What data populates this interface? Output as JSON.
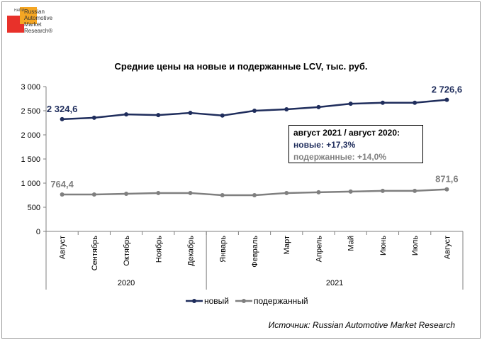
{
  "logo": {
    "tag": "НАПИ",
    "text": "Russian\nAutomotive\nMarket\nResearch®"
  },
  "chart_data": {
    "type": "line",
    "title": "Средние цены на новые и подержанные LCV, тыс. руб.",
    "categories": [
      "Август",
      "Сентябрь",
      "Октябрь",
      "Ноябрь",
      "Декабрь",
      "Январь",
      "Февраль",
      "Март",
      "Апрель",
      "Май",
      "Июнь",
      "Июль",
      "Август"
    ],
    "groups": [
      {
        "label": "2020",
        "start": 0,
        "end": 4
      },
      {
        "label": "2021",
        "start": 5,
        "end": 12
      }
    ],
    "ylim": [
      0,
      3000
    ],
    "yticks": [
      0,
      500,
      1000,
      1500,
      2000,
      2500,
      3000
    ],
    "ytick_labels": [
      "0",
      "500",
      "1 000",
      "1 500",
      "2 000",
      "2 500",
      "3 000"
    ],
    "grid": false,
    "legend": "bottom",
    "series": [
      {
        "name": "новый",
        "color": "#1f2d5c",
        "values": [
          2324.6,
          2355,
          2425,
          2410,
          2455,
          2400,
          2500,
          2530,
          2575,
          2645,
          2665,
          2665,
          2726.6
        ],
        "labels": [
          {
            "index": 0,
            "text": "2 324,6"
          },
          {
            "index": 12,
            "text": "2 726,6"
          }
        ]
      },
      {
        "name": "подержанный",
        "color": "#7f7f7f",
        "values": [
          764.4,
          765,
          780,
          795,
          795,
          750,
          750,
          795,
          810,
          825,
          840,
          840,
          871.6
        ],
        "labels": [
          {
            "index": 0,
            "text": "764,4"
          },
          {
            "index": 12,
            "text": "871,6"
          }
        ]
      }
    ]
  },
  "annotation": {
    "line1": "август 2021 / август 2020:",
    "line2": "новые:  +17,3%",
    "line3": "подержанные: +14,0%"
  },
  "source": "Источник: Russian Automotive Market Research"
}
